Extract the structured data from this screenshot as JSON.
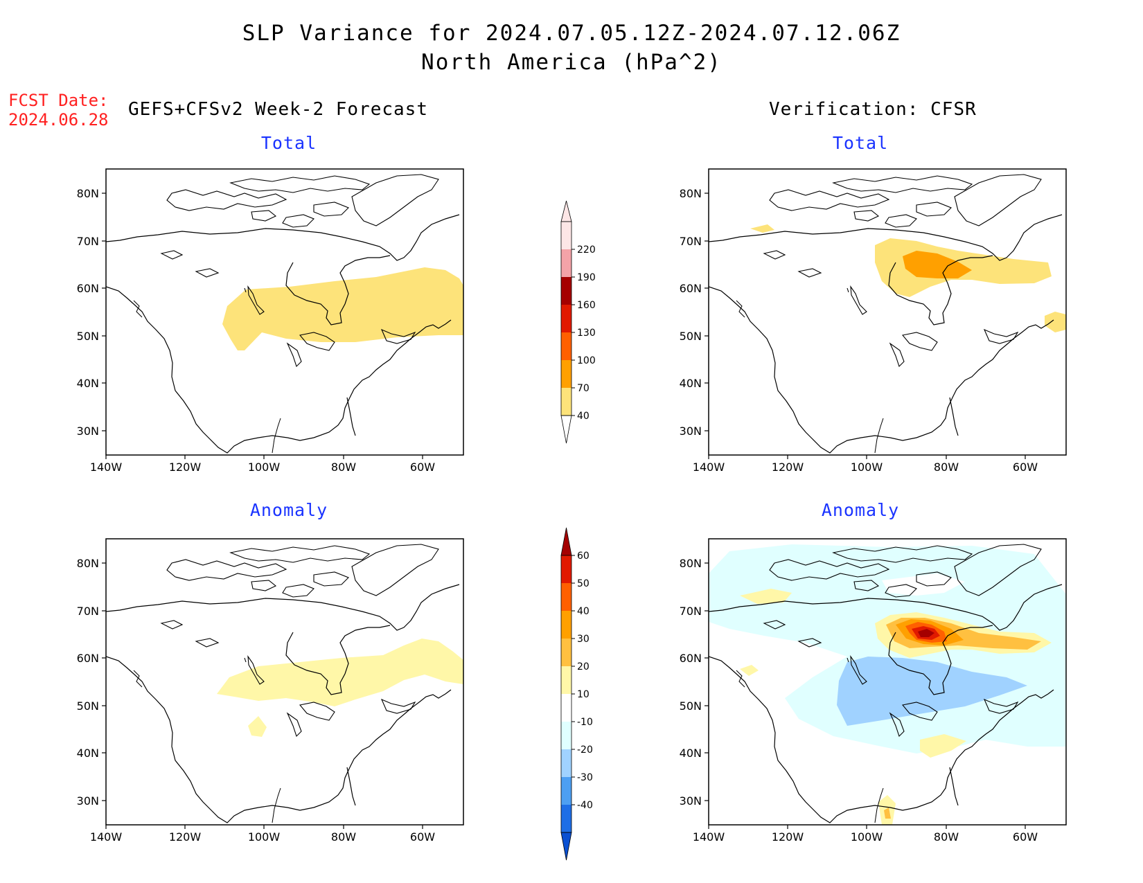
{
  "header": {
    "title_line1": "SLP Variance for 2024.07.05.12Z-2024.07.12.06Z",
    "title_line2": "North America (hPa^2)",
    "fcst_label": "FCST Date:",
    "fcst_date": "2024.06.28",
    "left_column": "GEFS+CFSv2 Week-2 Forecast",
    "right_column": "Verification: CFSR"
  },
  "panels": {
    "forecast_total": {
      "title": "Total"
    },
    "verification_total": {
      "title": "Total"
    },
    "forecast_anomaly": {
      "title": "Anomaly"
    },
    "verification_anomaly": {
      "title": "Anomaly"
    }
  },
  "axes": {
    "lat_ticks": [
      "80N",
      "70N",
      "60N",
      "50N",
      "40N",
      "30N"
    ],
    "lon_ticks": [
      "140W",
      "120W",
      "100W",
      "80W",
      "60W"
    ]
  },
  "colorbars": {
    "total": {
      "labels": [
        "220",
        "190",
        "160",
        "130",
        "100",
        "70",
        "40"
      ],
      "colors": [
        "#fde6e6",
        "#f4a3a8",
        "#a50000",
        "#e11a00",
        "#ff6000",
        "#ffa000",
        "#fde37a"
      ]
    },
    "anomaly": {
      "labels": [
        "60",
        "50",
        "40",
        "30",
        "20",
        "10",
        "-10",
        "-20",
        "-30",
        "-40"
      ],
      "colors": [
        "#a50000",
        "#e11a00",
        "#ff6000",
        "#ffa000",
        "#ffc040",
        "#fff7a8",
        "#ffffff",
        "#e0ffff",
        "#a0d2ff",
        "#4d9ff2",
        "#1e6ee6",
        "#0a50d2"
      ]
    }
  }
}
